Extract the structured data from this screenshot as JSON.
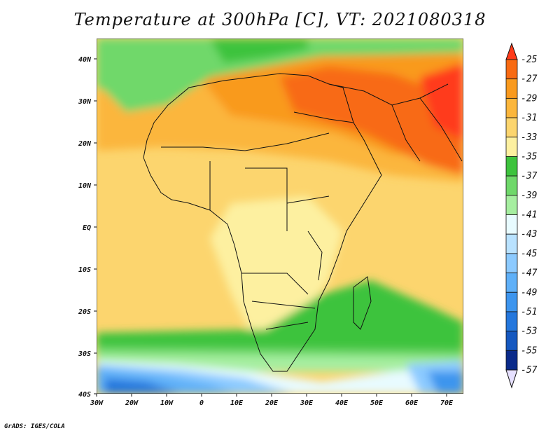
{
  "title": "Temperature at 300hPa [C], VT: 2021080318",
  "credit": "GrADS: IGES/COLA",
  "map": {
    "lon_labels": [
      "30W",
      "20W",
      "10W",
      "0",
      "10E",
      "20E",
      "30E",
      "40E",
      "50E",
      "60E",
      "70E"
    ],
    "lat_labels": [
      "40N",
      "30N",
      "20N",
      "10N",
      "EQ",
      "10S",
      "20S",
      "30S",
      "40S"
    ],
    "lon_range": [
      -30,
      75
    ],
    "lat_range": [
      -40,
      45
    ]
  },
  "colorbar": {
    "levels": [
      "-25",
      "-27",
      "-29",
      "-31",
      "-33",
      "-35",
      "-37",
      "-39",
      "-41",
      "-43",
      "-45",
      "-47",
      "-49",
      "-51",
      "-53",
      "-55",
      "-57"
    ],
    "colors": [
      "#ff3b1a",
      "#f86a12",
      "#f99a1e",
      "#fbb63c",
      "#fcd56e",
      "#fdf0a0",
      "#3dc33d",
      "#6fd86a",
      "#a6eea0",
      "#e8fbff",
      "#b9e2ff",
      "#8ccaff",
      "#5fb0f8",
      "#3d95ee",
      "#2477dd",
      "#1558c0",
      "#0a2a8a",
      "#0a1666"
    ]
  }
}
